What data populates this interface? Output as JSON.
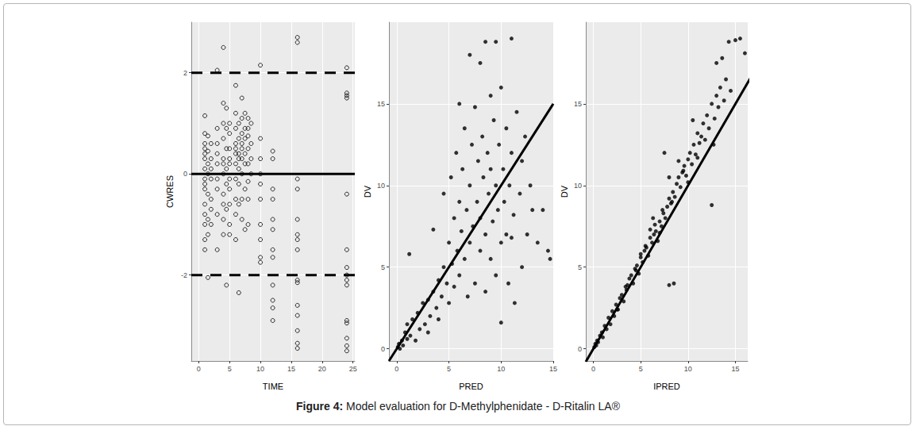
{
  "caption": {
    "label": "Figure 4:",
    "text": "Model evaluation for D-Methylphenidate - D-Ritalin LA®"
  },
  "chart_data": [
    {
      "type": "scatter",
      "x_label": "TIME",
      "y_label": "CWRES",
      "marker": "circle_open",
      "color": "#000000",
      "grid": true,
      "xlim": [
        -1.2,
        25.3
      ],
      "ylim": [
        -3.7,
        3.0
      ],
      "xticks": [
        0,
        5,
        10,
        15,
        20,
        25
      ],
      "yticks": [
        -2,
        0,
        2
      ],
      "x": [
        1,
        1,
        1,
        1,
        1,
        1,
        1,
        1,
        1,
        1,
        1,
        1,
        1,
        1,
        1,
        1.5,
        1.5,
        1.5,
        1.5,
        1.5,
        1.5,
        1.5,
        1.5,
        2,
        2,
        2,
        2,
        2,
        2,
        2,
        3,
        3,
        3,
        3,
        3,
        3,
        3,
        3,
        3,
        4,
        4,
        4,
        4,
        4,
        4,
        4,
        4,
        4,
        4,
        4,
        4.5,
        4.5,
        4.5,
        4.5,
        4.5,
        4.5,
        4.5,
        5,
        5,
        5,
        5,
        5,
        5,
        5,
        5,
        5,
        5,
        6,
        6,
        6,
        6,
        6,
        6,
        6,
        6,
        6,
        6,
        6,
        6.5,
        6.5,
        6.5,
        6.5,
        6.5,
        6.5,
        6.5,
        6.5,
        7,
        7,
        7,
        7,
        7,
        7,
        7,
        7,
        7,
        7.5,
        7.5,
        7.5,
        7.5,
        7.5,
        7.5,
        7.5,
        8,
        8,
        8,
        8,
        8,
        8,
        8,
        8,
        8.5,
        8.5,
        8.5,
        8.5,
        10,
        10,
        10,
        10,
        10,
        10,
        10,
        10,
        10,
        10,
        12,
        12,
        12,
        12,
        12,
        12,
        12,
        12,
        12,
        12,
        12,
        12,
        16,
        16,
        16,
        16,
        16,
        16,
        16,
        16,
        16,
        16,
        16,
        16,
        16,
        16,
        16,
        24,
        24,
        24,
        24,
        24,
        24,
        24,
        24,
        24,
        24,
        24,
        24,
        24,
        24,
        24
      ],
      "values": [
        1.15,
        0.6,
        0.5,
        0.3,
        0.1,
        -0.1,
        -0.3,
        -0.6,
        -0.8,
        -1.0,
        -1.3,
        -1.5,
        0.8,
        -0.2,
        0.4,
        0.75,
        0.2,
        -0.4,
        -0.9,
        -1.2,
        -2.05,
        0.0,
        0.45,
        0.6,
        0.3,
        -0.1,
        -0.5,
        -0.7,
        -1.0,
        0.1,
        2.05,
        0.6,
        0.2,
        -0.3,
        -0.8,
        -1.5,
        0.9,
        -0.1,
        0.4,
        2.5,
        1.4,
        1.0,
        0.7,
        0.3,
        0.0,
        -0.4,
        -0.6,
        -1.2,
        0.2,
        -0.9,
        0.9,
        0.5,
        -0.2,
        -2.2,
        0.1,
        -0.7,
        1.3,
        1.0,
        0.8,
        0.5,
        0.2,
        -0.1,
        -0.6,
        -1.0,
        -1.2,
        0.3,
        -0.3,
        1.75,
        1.2,
        0.9,
        0.6,
        0.4,
        0.2,
        -0.1,
        -0.5,
        -0.8,
        -1.3,
        0.5,
        1.0,
        0.7,
        0.4,
        0.1,
        -0.2,
        -0.6,
        -2.35,
        0.3,
        1.5,
        1.1,
        0.8,
        0.5,
        0.3,
        0.0,
        -0.5,
        -0.9,
        0.6,
        0.9,
        0.7,
        0.4,
        0.2,
        -0.3,
        -1.1,
        1.2,
        1.1,
        0.75,
        0.5,
        0.2,
        -0.15,
        -0.5,
        -1.0,
        0.9,
        1.0,
        0.6,
        0.3,
        0.0,
        2.15,
        0.7,
        0.3,
        -0.2,
        -0.5,
        -1.0,
        -1.3,
        -1.65,
        -1.75,
        0.0,
        0.45,
        0.3,
        -0.3,
        -0.5,
        -0.9,
        -1.1,
        -1.5,
        -1.65,
        -2.2,
        -2.5,
        -2.65,
        -2.9,
        2.7,
        2.6,
        -0.1,
        -0.3,
        -0.9,
        -1.2,
        -1.3,
        -1.5,
        -2.1,
        -2.15,
        -2.6,
        -2.8,
        -3.1,
        -3.35,
        -3.45,
        2.1,
        1.6,
        1.55,
        1.5,
        -0.4,
        -1.5,
        -1.85,
        -2.0,
        -2.1,
        -2.2,
        -2.9,
        -2.95,
        -3.25,
        -3.4,
        -3.5
      ],
      "lines": [
        {
          "x": [
            -1.2,
            25.3
          ],
          "values": [
            2,
            2
          ],
          "line_style": "dashed"
        },
        {
          "x": [
            -1.2,
            25.3
          ],
          "values": [
            0,
            0
          ],
          "line_style": "solid"
        },
        {
          "x": [
            -1.2,
            25.3
          ],
          "values": [
            -2,
            -2
          ],
          "line_style": "dashed"
        }
      ]
    },
    {
      "type": "scatter",
      "x_label": "PRED",
      "y_label": "DV",
      "marker": "circle",
      "color": "#000000",
      "grid": true,
      "xlim": [
        -0.75,
        15.0
      ],
      "ylim": [
        -0.75,
        20.0
      ],
      "xticks": [
        0,
        5,
        10,
        15
      ],
      "yticks": [
        0,
        5,
        10,
        15
      ],
      "x": [
        0.1,
        0.2,
        0.3,
        0.5,
        0.6,
        0.8,
        1.0,
        1.0,
        1.2,
        1.3,
        1.5,
        1.8,
        2.0,
        2.2,
        2.5,
        2.7,
        3.0,
        3.0,
        3.2,
        3.5,
        3.5,
        3.8,
        4.0,
        4.0,
        4.3,
        4.5,
        4.5,
        4.8,
        5.0,
        5.0,
        5.2,
        5.3,
        5.5,
        5.5,
        5.7,
        5.8,
        6.0,
        6.0,
        6.0,
        6.2,
        6.3,
        6.5,
        6.5,
        6.7,
        6.8,
        7.0,
        7.0,
        7.0,
        7.2,
        7.3,
        7.5,
        7.5,
        7.7,
        7.8,
        8.0,
        8.0,
        8.0,
        8.2,
        8.3,
        8.5,
        8.5,
        8.5,
        8.7,
        8.8,
        9.0,
        9.0,
        9.0,
        9.2,
        9.3,
        9.5,
        9.5,
        9.5,
        9.7,
        9.8,
        10.0,
        10.0,
        10.0,
        10.2,
        10.3,
        10.5,
        10.5,
        10.7,
        10.8,
        11.0,
        11.0,
        11.0,
        11.2,
        11.3,
        11.5,
        11.8,
        12.0,
        12.0,
        12.5,
        12.8,
        13.0,
        13.5,
        14.0,
        14.5,
        14.7,
        12.3
      ],
      "values": [
        0.1,
        0.3,
        0.0,
        0.5,
        0.2,
        1.0,
        0.6,
        1.5,
        5.8,
        0.8,
        1.8,
        0.5,
        2.2,
        1.2,
        2.8,
        1.5,
        3.0,
        1.0,
        2.0,
        7.3,
        3.5,
        2.5,
        4.2,
        1.8,
        3.2,
        5.0,
        9.5,
        4.0,
        6.5,
        2.8,
        10.5,
        5.2,
        8.0,
        3.8,
        12.0,
        6.0,
        15.0,
        9.0,
        4.5,
        7.2,
        11.0,
        13.5,
        5.5,
        8.5,
        3.2,
        18.0,
        10.0,
        6.5,
        12.5,
        7.5,
        14.8,
        4.0,
        9.0,
        11.5,
        17.5,
        6.0,
        8.0,
        13.0,
        10.5,
        18.8,
        7.0,
        3.5,
        12.0,
        9.5,
        15.5,
        5.5,
        11.0,
        7.8,
        14.0,
        18.8,
        10.0,
        4.5,
        8.5,
        12.5,
        16.0,
        6.5,
        1.6,
        11.0,
        9.0,
        13.5,
        7.0,
        4.0,
        10.0,
        19.0,
        12.0,
        6.8,
        8.2,
        2.8,
        14.5,
        9.5,
        11.5,
        5.0,
        7.0,
        10.0,
        8.5,
        6.5,
        8.5,
        6.0,
        5.5,
        13.0
      ],
      "lines": [
        {
          "x": [
            -0.75,
            15.0
          ],
          "values": [
            -0.75,
            15.0
          ],
          "line_style": "solid"
        }
      ]
    },
    {
      "type": "scatter",
      "x_label": "IPRED",
      "y_label": "DV",
      "marker": "circle",
      "color": "#000000",
      "grid": true,
      "xlim": [
        -0.8,
        16.3
      ],
      "ylim": [
        -0.75,
        20.0
      ],
      "xticks": [
        0,
        5,
        10,
        15
      ],
      "yticks": [
        0,
        5,
        10,
        15
      ],
      "x": [
        0.1,
        0.2,
        0.3,
        0.4,
        0.5,
        0.7,
        0.9,
        1.0,
        1.2,
        1.4,
        1.6,
        1.8,
        2.0,
        2.2,
        2.4,
        2.6,
        2.8,
        3.0,
        3.2,
        3.4,
        3.6,
        3.8,
        4.0,
        4.2,
        4.4,
        4.6,
        4.8,
        5.0,
        5.2,
        5.4,
        5.6,
        5.8,
        6.0,
        6.2,
        6.4,
        6.6,
        6.8,
        7.0,
        7.2,
        7.4,
        7.6,
        7.8,
        8.0,
        8.0,
        8.2,
        8.4,
        8.6,
        8.8,
        9.0,
        9.2,
        9.4,
        9.6,
        9.8,
        10.0,
        10.2,
        10.4,
        10.6,
        10.8,
        11.0,
        11.2,
        11.4,
        11.6,
        11.8,
        12.0,
        12.2,
        12.5,
        12.5,
        12.8,
        13.0,
        13.2,
        13.4,
        13.6,
        13.8,
        14.0,
        14.3,
        14.5,
        13.0,
        12.7,
        15.0,
        15.5,
        16.0,
        7.5,
        6.3,
        8.5,
        9.0,
        10.5,
        5.0,
        3.5,
        2.5,
        6.0,
        7.0,
        8.0,
        9.5,
        10.0,
        11.0,
        4.5,
        5.5,
        6.5,
        7.3,
        8.3
      ],
      "values": [
        0.1,
        0.3,
        0.2,
        0.5,
        0.4,
        0.8,
        1.0,
        0.7,
        1.4,
        1.2,
        1.9,
        1.5,
        2.3,
        2.0,
        2.7,
        2.4,
        3.1,
        3.3,
        2.9,
        3.8,
        3.9,
        4.3,
        4.5,
        4.0,
        4.9,
        5.1,
        4.6,
        5.6,
        5.3,
        6.0,
        6.2,
        5.7,
        6.8,
        6.5,
        7.0,
        7.2,
        6.6,
        7.8,
        7.5,
        8.3,
        8.0,
        8.7,
        9.2,
        3.9,
        8.9,
        9.6,
        9.3,
        10.1,
        10.5,
        9.9,
        10.8,
        11.2,
        10.6,
        11.6,
        12.0,
        11.3,
        12.5,
        11.9,
        13.2,
        12.6,
        13.0,
        13.8,
        12.8,
        14.3,
        13.5,
        8.8,
        15.0,
        14.1,
        15.5,
        14.8,
        16.0,
        17.8,
        15.2,
        16.5,
        18.8,
        15.8,
        17.5,
        12.5,
        18.9,
        19.0,
        18.1,
        12.0,
        8.0,
        4.0,
        11.5,
        14.0,
        5.8,
        3.6,
        2.4,
        7.3,
        7.1,
        10.5,
        10.9,
        10.2,
        11.7,
        4.8,
        6.3,
        7.6,
        8.5,
        9.0
      ],
      "lines": [
        {
          "x": [
            -0.8,
            17.0
          ],
          "values": [
            -0.8,
            17.0
          ],
          "line_style": "solid"
        }
      ]
    }
  ]
}
